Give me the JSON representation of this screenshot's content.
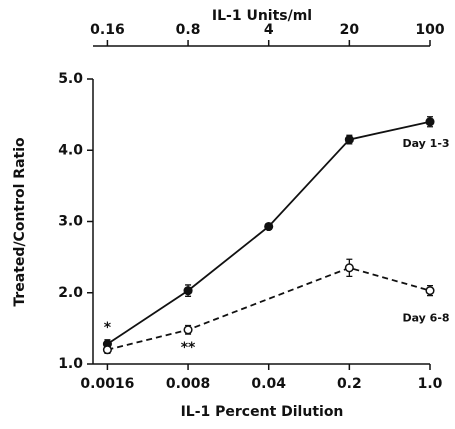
{
  "chart_data": {
    "type": "line",
    "xlabel": "IL-1 Percent Dilution",
    "ylabel": "Treated/Control Ratio",
    "x2label": "IL-1 Units/ml",
    "xscale": "log",
    "xlim": [
      0.0012,
      1.0
    ],
    "xticks": [
      0.0016,
      0.008,
      0.04,
      0.2,
      {
        "value": 1.0,
        "label": "1.0"
      }
    ],
    "x2lim": [
      0.12,
      100
    ],
    "x2ticks": [
      0.16,
      0.8,
      4,
      20,
      100
    ],
    "ylim": [
      1.0,
      5.0
    ],
    "yticks": [
      {
        "value": 1.0,
        "label": "1.0"
      },
      {
        "value": 2.0,
        "label": "2.0"
      },
      {
        "value": 3.0,
        "label": "3.0"
      },
      {
        "value": 4.0,
        "label": "4.0"
      },
      {
        "value": 5.0,
        "label": "5.0"
      }
    ],
    "grid": false,
    "series": [
      {
        "name": "Day 1-3",
        "color": "#111111",
        "marker": "filled",
        "dash": false,
        "x": [
          0.0016,
          0.008,
          0.04,
          0.2,
          1.0
        ],
        "values": [
          1.28,
          2.03,
          2.93,
          4.15,
          4.4
        ],
        "errors": [
          0.06,
          0.08,
          0.04,
          0.06,
          0.07
        ]
      },
      {
        "name": "Day 6-8",
        "color": "#111111",
        "marker": "open",
        "dash": true,
        "x": [
          0.0016,
          0.008,
          0.2,
          1.0
        ],
        "values": [
          1.2,
          1.48,
          2.35,
          2.03
        ],
        "errors": [
          0.05,
          0.06,
          0.12,
          0.07
        ]
      }
    ],
    "annotations": [
      "*",
      "**"
    ]
  }
}
